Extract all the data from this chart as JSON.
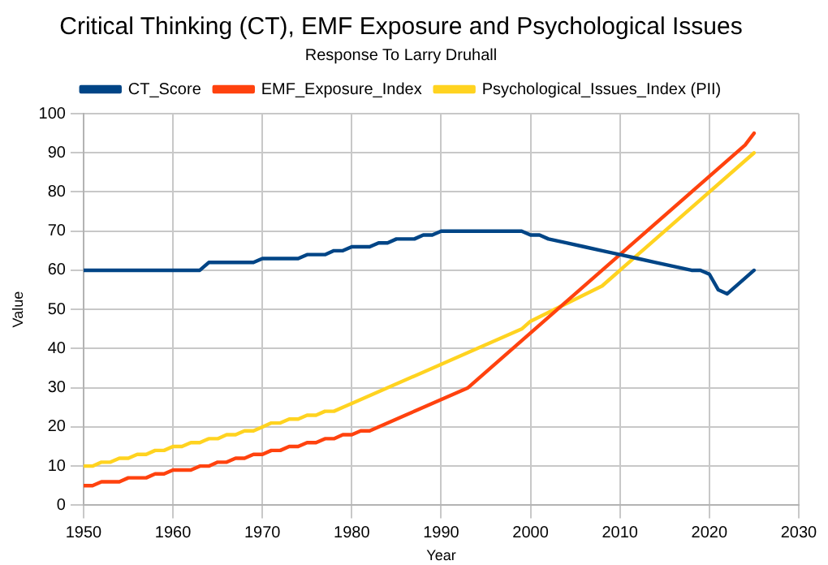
{
  "chart_data": {
    "type": "line",
    "title": "Critical Thinking (CT), EMF Exposure and Psychological Issues",
    "subtitle": "Response To Larry Druhall",
    "xlabel": "Year",
    "ylabel": "Value",
    "legend": "top",
    "grid": true,
    "marker": "none",
    "line_style": "solid",
    "xlim": [
      1950,
      2030
    ],
    "xticks": [
      1950,
      1960,
      1970,
      1980,
      1990,
      2000,
      2010,
      2020,
      2030
    ],
    "ylim": [
      0,
      100
    ],
    "yticks": [
      0,
      10,
      20,
      30,
      40,
      50,
      60,
      70,
      80,
      90,
      100
    ],
    "series": [
      {
        "name": "CT_Score",
        "color": "#004586",
        "x": [
          1950,
          1963,
          1964,
          1969,
          1970,
          1974,
          1975,
          1977,
          1978,
          1979,
          1980,
          1982,
          1983,
          1984,
          1985,
          1987,
          1988,
          1989,
          1990,
          1999,
          2000,
          2001,
          2002,
          2004,
          2006,
          2008,
          2010,
          2012,
          2014,
          2016,
          2018,
          2019,
          2020,
          2021,
          2022,
          2025
        ],
        "values": [
          60,
          60,
          62,
          62,
          63,
          63,
          64,
          64,
          65,
          65,
          66,
          66,
          67,
          67,
          68,
          68,
          69,
          69,
          70,
          70,
          69,
          69,
          68,
          67,
          66,
          65,
          64,
          63,
          62,
          61,
          60,
          60,
          59,
          55,
          54,
          60
        ]
      },
      {
        "name": "EMF_Exposure_Index",
        "color": "#ff420e",
        "x": [
          1950,
          1951,
          1952,
          1954,
          1955,
          1957,
          1958,
          1959,
          1960,
          1962,
          1963,
          1964,
          1965,
          1966,
          1967,
          1968,
          1969,
          1970,
          1971,
          1972,
          1973,
          1974,
          1975,
          1976,
          1977,
          1978,
          1979,
          1980,
          1981,
          1982,
          1993,
          2024,
          2025
        ],
        "values": [
          5,
          5,
          6,
          6,
          7,
          7,
          8,
          8,
          9,
          9,
          10,
          10,
          11,
          11,
          12,
          12,
          13,
          13,
          14,
          14,
          15,
          15,
          16,
          16,
          17,
          17,
          18,
          18,
          19,
          19,
          30,
          92,
          95
        ]
      },
      {
        "name": "Psychological_Issues_Index (PII)",
        "color": "#ffd320",
        "x": [
          1950,
          1951,
          1952,
          1953,
          1954,
          1955,
          1956,
          1957,
          1958,
          1959,
          1960,
          1961,
          1962,
          1963,
          1964,
          1965,
          1966,
          1967,
          1968,
          1969,
          1970,
          1971,
          1972,
          1973,
          1974,
          1975,
          1976,
          1977,
          1978,
          1979,
          1980,
          1999,
          2000,
          2008,
          2010,
          2025
        ],
        "values": [
          10,
          10,
          11,
          11,
          12,
          12,
          13,
          13,
          14,
          14,
          15,
          15,
          16,
          16,
          17,
          17,
          18,
          18,
          19,
          19,
          20,
          21,
          21,
          22,
          22,
          23,
          23,
          24,
          24,
          25,
          26,
          45,
          47,
          56,
          60,
          90
        ]
      }
    ]
  }
}
